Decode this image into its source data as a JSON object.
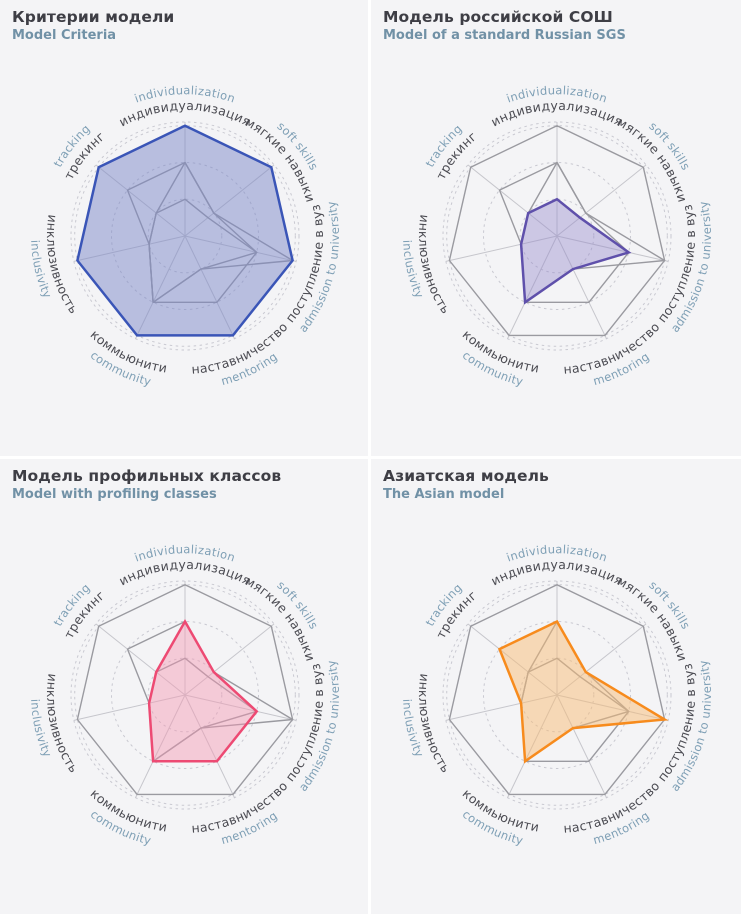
{
  "page": {
    "background": "#ffffff",
    "panel_background": "#f4f4f6",
    "title_color": "#3e3e45",
    "subtitle_color": "#7191a6"
  },
  "axes": [
    {
      "ru": "индивидуализация",
      "en": "individualization"
    },
    {
      "ru": "мягкие навыки",
      "en": "soft skills"
    },
    {
      "ru": "поступление в вуз",
      "en": "admission to university"
    },
    {
      "ru": "наставничество",
      "en": "mentoring"
    },
    {
      "ru": "коммьюнити",
      "en": "community"
    },
    {
      "ru": "инклюзивность",
      "en": "inclusivity"
    },
    {
      "ru": "трекинг",
      "en": "tracking"
    }
  ],
  "label_colors": {
    "ru": "#4b4b52",
    "en": "#7e9fb5"
  },
  "panels": [
    {
      "title": "Критерии модели",
      "subtitle": "Model Criteria",
      "series": 0
    },
    {
      "title": "Модель российской СОШ",
      "subtitle": "Model of a standard Russian SGS",
      "series": 1
    },
    {
      "title": "Модель профильных классов",
      "subtitle": "Model with profiling classes",
      "series": 2
    },
    {
      "title": "Азиатская модель",
      "subtitle": "The Asian model",
      "series": 3
    }
  ],
  "chart_data": {
    "type": "radar",
    "categories_ru": [
      "индивидуализация",
      "мягкие навыки",
      "поступление в вуз",
      "наставничество",
      "коммьюнити",
      "инклюзивность",
      "трекинг"
    ],
    "categories_en": [
      "individualization",
      "soft skills",
      "admission to university",
      "mentoring",
      "community",
      "inclusivity",
      "tracking"
    ],
    "radial_axis": {
      "min": 0,
      "max": 3.1,
      "rings": [
        1,
        2,
        3
      ],
      "ring_style": "dashed",
      "tick_labels_visible": false
    },
    "series": [
      {
        "name": "Критерии модели",
        "name_en": "Model Criteria",
        "values": [
          3,
          3,
          3,
          3,
          3,
          3,
          3
        ],
        "stroke": "#3a55b7",
        "fill": "rgba(124,136,199,0.5)"
      },
      {
        "name": "Модель российской СОШ",
        "name_en": "Model of a standard Russian SGS",
        "values": [
          1,
          0.8,
          2,
          1,
          2,
          1,
          1
        ],
        "stroke": "#5f50ab",
        "fill": "rgba(148,136,202,0.42)"
      },
      {
        "name": "Модель профильных классов",
        "name_en": "Model with profiling classes",
        "values": [
          2,
          1,
          2,
          2,
          2,
          1,
          1
        ],
        "stroke": "#ed4a73",
        "fill": "rgba(243,150,177,0.45)"
      },
      {
        "name": "Азиатская модель",
        "name_en": "The Asian model",
        "values": [
          2,
          1,
          3,
          1,
          2,
          1,
          2
        ],
        "stroke": "#f78b1d",
        "fill": "rgba(247,188,118,0.5)"
      }
    ],
    "grid_layout": "2x2 panels; each panel highlights one series in color, all other series drawn in gray",
    "other_series_color": "#9a9aa0",
    "axis_line_color": "#c6c6cc",
    "ring_color": "#c9c9d1",
    "legend_position": "none"
  }
}
